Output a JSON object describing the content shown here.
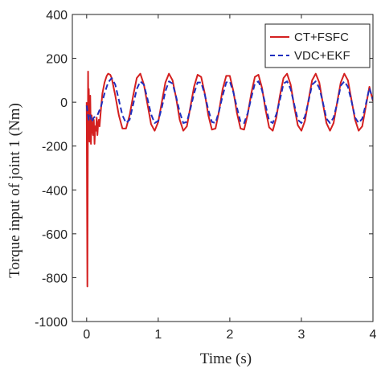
{
  "chart_data": {
    "type": "line",
    "title": "",
    "xlabel": "Time (s)",
    "ylabel": "Torque input of joint 1 (Nm)",
    "xlim": [
      -0.2,
      4
    ],
    "ylim": [
      -1000,
      400
    ],
    "xticks": [
      0,
      1,
      2,
      3,
      4
    ],
    "yticks": [
      400,
      200,
      0,
      -200,
      -400,
      -600,
      -800,
      -1000
    ],
    "grid": false,
    "legend": "top-right",
    "series": [
      {
        "name": "CT+FSFC",
        "color": "#d42020",
        "style": "solid",
        "x": [
          0,
          0.01,
          0.02,
          0.025,
          0.03,
          0.04,
          0.05,
          0.06,
          0.07,
          0.08,
          0.09,
          0.1,
          0.11,
          0.12,
          0.13,
          0.14,
          0.15,
          0.16,
          0.17,
          0.18,
          0.2,
          0.22,
          0.25,
          0.28,
          0.3,
          0.33,
          0.35,
          0.4,
          0.45,
          0.5,
          0.55,
          0.6,
          0.65,
          0.7,
          0.75,
          0.8,
          0.85,
          0.9,
          0.95,
          1.0,
          1.05,
          1.1,
          1.15,
          1.2,
          1.25,
          1.3,
          1.35,
          1.4,
          1.45,
          1.5,
          1.55,
          1.6,
          1.65,
          1.7,
          1.75,
          1.8,
          1.85,
          1.9,
          1.95,
          2.0,
          2.05,
          2.1,
          2.15,
          2.2,
          2.25,
          2.3,
          2.35,
          2.4,
          2.45,
          2.5,
          2.55,
          2.6,
          2.65,
          2.7,
          2.75,
          2.8,
          2.85,
          2.9,
          2.95,
          3.0,
          3.05,
          3.1,
          3.15,
          3.2,
          3.25,
          3.3,
          3.35,
          3.4,
          3.45,
          3.5,
          3.55,
          3.6,
          3.65,
          3.7,
          3.75,
          3.8,
          3.85,
          3.9,
          3.95,
          4.0
        ],
        "y": [
          0,
          -840,
          140,
          -150,
          60,
          -180,
          30,
          -190,
          -60,
          -120,
          -150,
          -80,
          -190,
          -110,
          -130,
          -70,
          -150,
          -100,
          -80,
          -110,
          -30,
          40,
          90,
          120,
          130,
          125,
          110,
          30,
          -60,
          -120,
          -120,
          -60,
          30,
          110,
          130,
          80,
          -10,
          -100,
          -130,
          -90,
          0,
          90,
          130,
          100,
          20,
          -80,
          -130,
          -110,
          -20,
          70,
          125,
          115,
          40,
          -60,
          -125,
          -120,
          -40,
          60,
          120,
          120,
          50,
          -50,
          -120,
          -125,
          -55,
          40,
          115,
          125,
          65,
          -35,
          -115,
          -130,
          -70,
          30,
          110,
          130,
          80,
          -20,
          -105,
          -130,
          -85,
          10,
          100,
          130,
          90,
          -5,
          -95,
          -130,
          -95,
          0,
          90,
          130,
          100,
          10,
          -80,
          -130,
          -110,
          -20,
          70,
          5
        ]
      },
      {
        "name": "VDC+EKF",
        "color": "#1f2fbf",
        "style": "dashed",
        "x": [
          0,
          0.01,
          0.03,
          0.05,
          0.07,
          0.1,
          0.15,
          0.2,
          0.25,
          0.3,
          0.35,
          0.4,
          0.45,
          0.5,
          0.55,
          0.6,
          0.65,
          0.7,
          0.75,
          0.8,
          0.85,
          0.9,
          0.95,
          1.0,
          1.05,
          1.1,
          1.15,
          1.2,
          1.25,
          1.3,
          1.35,
          1.4,
          1.45,
          1.5,
          1.55,
          1.6,
          1.65,
          1.7,
          1.75,
          1.8,
          1.85,
          1.9,
          1.95,
          2.0,
          2.05,
          2.1,
          2.15,
          2.2,
          2.25,
          2.3,
          2.35,
          2.4,
          2.45,
          2.5,
          2.55,
          2.6,
          2.65,
          2.7,
          2.75,
          2.8,
          2.85,
          2.9,
          2.95,
          3.0,
          3.05,
          3.1,
          3.15,
          3.2,
          3.25,
          3.3,
          3.35,
          3.4,
          3.45,
          3.5,
          3.55,
          3.6,
          3.65,
          3.7,
          3.75,
          3.8,
          3.85,
          3.9,
          3.95,
          4.0
        ],
        "y": [
          -15,
          -40,
          -80,
          -60,
          -90,
          -70,
          -60,
          -20,
          40,
          90,
          110,
          80,
          10,
          -60,
          -95,
          -80,
          -10,
          60,
          95,
          80,
          15,
          -55,
          -95,
          -85,
          -25,
          50,
          95,
          85,
          25,
          -45,
          -95,
          -90,
          -30,
          40,
          90,
          90,
          35,
          -35,
          -90,
          -95,
          -40,
          30,
          90,
          95,
          45,
          -25,
          -90,
          -95,
          -50,
          20,
          85,
          95,
          55,
          -15,
          -85,
          -95,
          -55,
          10,
          85,
          95,
          60,
          -10,
          -80,
          -95,
          -65,
          5,
          80,
          95,
          65,
          0,
          -75,
          -95,
          -70,
          -5,
          75,
          95,
          70,
          5,
          -70,
          -95,
          -75,
          -10,
          65,
          10
        ]
      }
    ]
  }
}
